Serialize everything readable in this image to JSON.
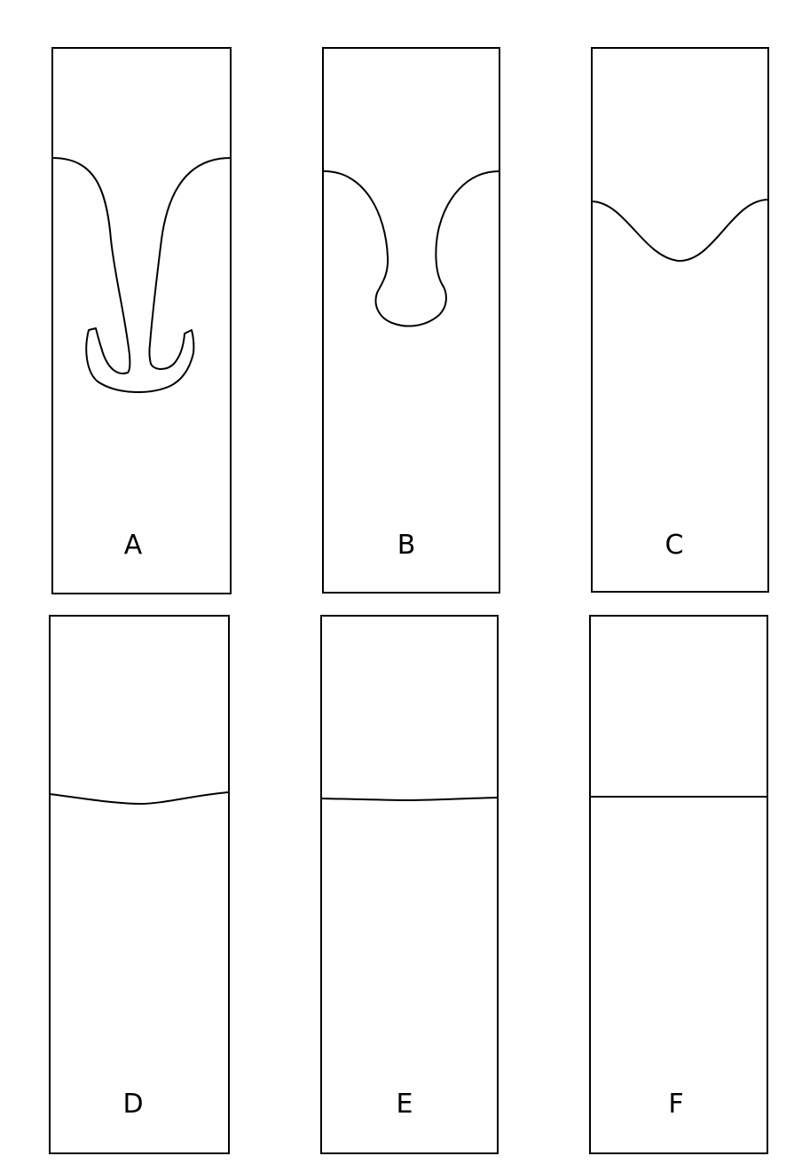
{
  "panels": [
    {
      "id": "A",
      "label": "A"
    },
    {
      "id": "B",
      "label": "B"
    },
    {
      "id": "C",
      "label": "C"
    },
    {
      "id": "D",
      "label": "D"
    },
    {
      "id": "E",
      "label": "E"
    },
    {
      "id": "F",
      "label": "F"
    }
  ],
  "colors": {
    "line": "#000000",
    "background": "#ffffff"
  }
}
